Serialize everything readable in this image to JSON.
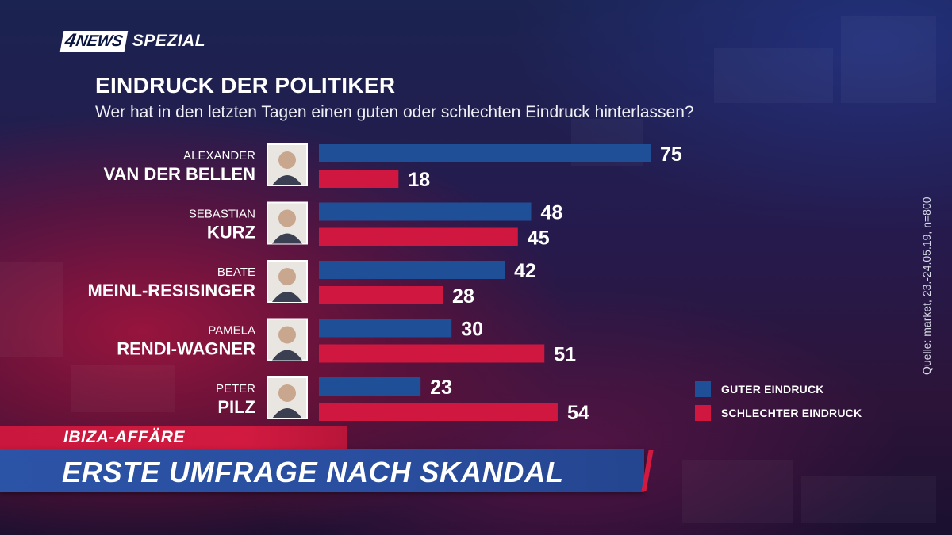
{
  "brand": {
    "logo_number": "4",
    "logo_name": "NEWS",
    "logo_suffix": "SPEZIAL"
  },
  "colors": {
    "good": "#1f4f97",
    "bad": "#d0173f"
  },
  "chart_data": {
    "type": "bar",
    "title": "EINDRUCK DER POLITIKER",
    "subtitle": "Wer hat in den letzten Tagen einen guten oder schlechten Eindruck hinterlassen?",
    "source": "Quelle: market, 23.-24.05.19, n=800",
    "legend_position": "bottom-right",
    "grid": false,
    "categories": [
      {
        "first": "ALEXANDER",
        "last": "VAN DER BELLEN"
      },
      {
        "first": "SEBASTIAN",
        "last": "KURZ"
      },
      {
        "first": "BEATE",
        "last": "MEINL-RESISINGER"
      },
      {
        "first": "PAMELA",
        "last": "RENDI-WAGNER"
      },
      {
        "first": "PETER",
        "last": "PILZ"
      }
    ],
    "series": [
      {
        "name": "GUTER EINDRUCK",
        "values": [
          75,
          48,
          42,
          30,
          23
        ]
      },
      {
        "name": "SCHLECHTER EINDRUCK",
        "values": [
          18,
          45,
          28,
          51,
          54
        ]
      }
    ],
    "xlim": [
      0,
      75
    ]
  },
  "ticker": {
    "kicker": "IBIZA-AFFÄRE",
    "headline": "ERSTE UMFRAGE NACH SKANDAL"
  }
}
